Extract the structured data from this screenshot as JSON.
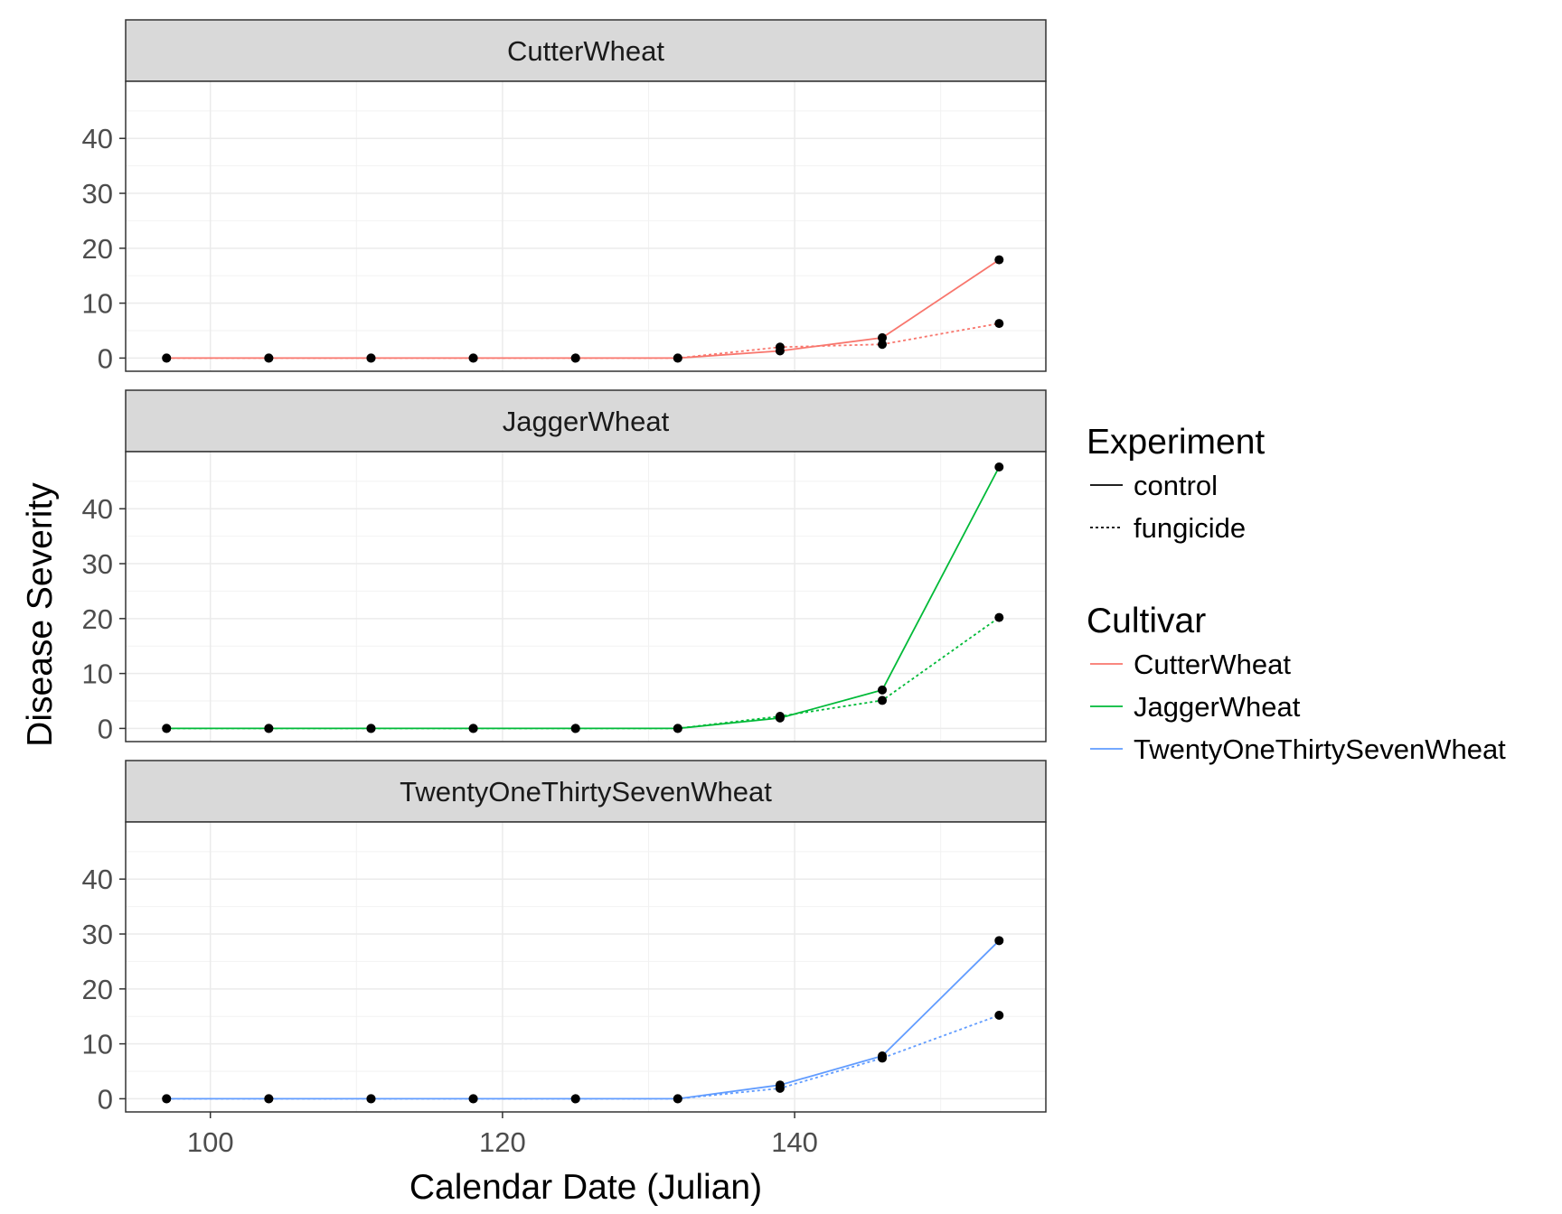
{
  "chart_data": {
    "type": "line",
    "xlabel": "Calendar Date (Julian)",
    "ylabel": "Disease Severity",
    "xlim": [
      94.2,
      157.2
    ],
    "ylim": [
      -2.4,
      50.4
    ],
    "x_ticks": [
      100,
      120,
      140
    ],
    "y_ticks": [
      0,
      10,
      20,
      30,
      40
    ],
    "grid": true,
    "legend_position": "right",
    "experiment_legend": {
      "title": "Experiment",
      "entries": [
        {
          "label": "control",
          "dash": "solid"
        },
        {
          "label": "fungicide",
          "dash": "dotted"
        }
      ]
    },
    "cultivar_legend": {
      "title": "Cultivar",
      "entries": [
        {
          "label": "CutterWheat",
          "color": "#F8766D"
        },
        {
          "label": "JaggerWheat",
          "color": "#00BA38"
        },
        {
          "label": "TwentyOneThirtySevenWheat",
          "color": "#619CFF"
        }
      ]
    },
    "x": [
      97,
      104,
      111,
      118,
      125,
      132,
      139,
      146,
      154
    ],
    "panels": [
      {
        "title": "CutterWheat",
        "color": "#F8766D",
        "series": [
          {
            "experiment": "control",
            "values": [
              0,
              0,
              0,
              0,
              0,
              0,
              1.3,
              3.7,
              17.9
            ]
          },
          {
            "experiment": "fungicide",
            "values": [
              0,
              0,
              0,
              0,
              0,
              0,
              2.0,
              2.5,
              6.3
            ]
          }
        ]
      },
      {
        "title": "JaggerWheat",
        "color": "#00BA38",
        "series": [
          {
            "experiment": "control",
            "values": [
              0,
              0,
              0,
              0,
              0,
              0,
              1.9,
              7.0,
              47.6
            ]
          },
          {
            "experiment": "fungicide",
            "values": [
              0,
              0,
              0,
              0,
              0,
              0,
              2.2,
              5.1,
              20.2
            ]
          }
        ]
      },
      {
        "title": "TwentyOneThirtySevenWheat",
        "color": "#619CFF",
        "series": [
          {
            "experiment": "control",
            "values": [
              0,
              0,
              0,
              0,
              0,
              0,
              2.5,
              7.8,
              28.8
            ]
          },
          {
            "experiment": "fungicide",
            "values": [
              0,
              0,
              0,
              0,
              0,
              0,
              1.9,
              7.4,
              15.2
            ]
          }
        ]
      }
    ]
  }
}
